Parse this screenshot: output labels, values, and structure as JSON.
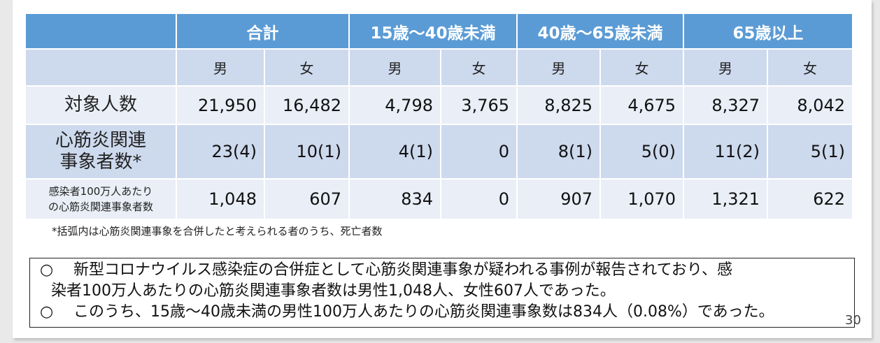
{
  "table": {
    "group_headers": [
      "合計",
      "15歳〜40歳未満",
      "40歳〜65歳未満",
      "65歳以上"
    ],
    "sex_headers": [
      "男",
      "女",
      "男",
      "女",
      "男",
      "女",
      "男",
      "女"
    ],
    "rows": [
      {
        "label": "対象人数",
        "values": [
          "21,950",
          "16,482",
          "4,798",
          "3,765",
          "8,825",
          "4,675",
          "8,327",
          "8,042"
        ]
      },
      {
        "label_line1": "心筋炎関連",
        "label_line2": "事象者数*",
        "values": [
          "23(4)",
          "10(1)",
          "4(1)",
          "0",
          "8(1)",
          "5(0)",
          "11(2)",
          "5(1)"
        ]
      },
      {
        "label_line1": "感染者100万人あたり",
        "label_line2": "の心筋炎関連事象者数",
        "values": [
          "1,048",
          "607",
          "834",
          "0",
          "907",
          "1,070",
          "1,321",
          "622"
        ]
      }
    ]
  },
  "footnote": "*括弧内は心筋炎関連事象を合併したと考えられる者のうち、死亡者数",
  "summary": {
    "bullet": "○",
    "item1_line1": "新型コロナウイルス感染症の合併症として心筋炎関連事象が疑われる事例が報告されており、感",
    "item1_line2": "染者100万人あたりの心筋炎関連事象者数は男性1,048人、女性607人であった。",
    "item2": "このうち、15歳〜40歳未満の男性100万人あたりの心筋炎関連事象数は834人（0.08%）であった。"
  },
  "page_number": "30",
  "colors": {
    "header_blue": "#5b9bd5",
    "row_dark": "#cdd9ed",
    "row_light": "#e9eef7"
  }
}
